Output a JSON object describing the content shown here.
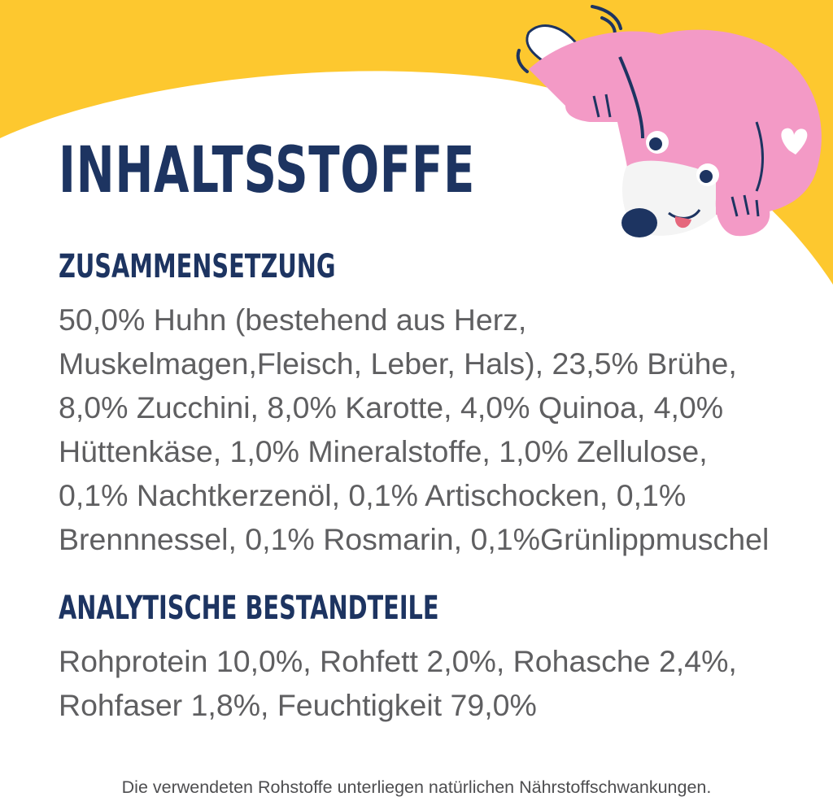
{
  "title": "INHALTSSTOFFE",
  "composition": {
    "heading": "ZUSAMMENSETZUNG",
    "lines": [
      "50,0% Huhn (bestehend aus Herz,",
      "Muskelmagen,Fleisch, Leber, Hals), 23,5% Brühe,",
      "8,0% Zucchini, 8,0% Karotte, 4,0% Quinoa, 4,0%",
      "Hüttenkäse, 1,0% Mineralstoffe, 1,0% Zellulose,",
      "0,1% Nachtkerzenöl, 0,1% Artischocken, 0,1%",
      "Brennnessel, 0,1% Rosmarin, 0,1%Grünlippmuschel"
    ]
  },
  "analytical": {
    "heading": "ANALYTISCHE BESTANDTEILE",
    "lines": [
      "Rohprotein 10,0%, Rohfett 2,0%, Rohasche 2,4%,",
      "Rohfaser 1,8%, Feuchtigkeit 79,0%"
    ]
  },
  "footnote": "Die verwendeten Rohstoffe unterliegen natürlichen Nährstoffschwankungen.",
  "colors": {
    "yellow": "#fdc82f",
    "navy": "#1d3461",
    "text_gray": "#5f5f61",
    "dog_pink": "#f39ac6"
  },
  "icons": [
    "dog-mascot-icon"
  ]
}
